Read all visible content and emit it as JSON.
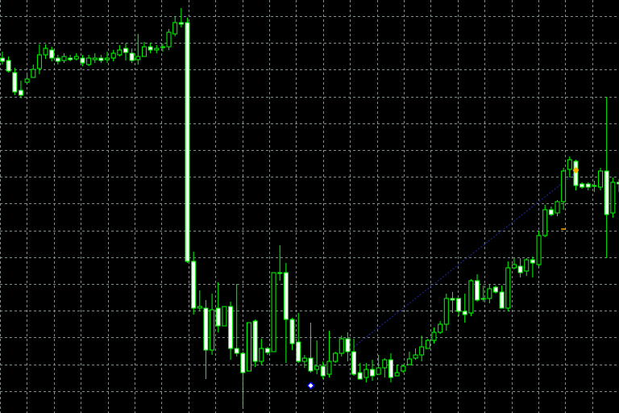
{
  "chart_data": {
    "type": "candlestick",
    "grid": true,
    "grid_style": "dashed",
    "colors": {
      "background": "#000000",
      "grid": "#7f8a8a",
      "candle_up_fill": "#000000",
      "candle_down_fill": "#ffffff",
      "candle_outline": "#00ff00",
      "wick": "#00ff00",
      "trendline": "#1e2aa8",
      "marker_up": "#ffb000",
      "marker_down": "#0000ff",
      "marker_hash": "#ffb000"
    },
    "candles": [
      [
        72,
        76,
        64,
        80
      ],
      [
        75,
        88,
        70,
        90
      ],
      [
        90,
        114,
        84,
        118
      ],
      [
        112,
        118,
        100,
        122
      ],
      [
        102,
        98,
        92,
        103
      ],
      [
        96,
        86,
        80,
        92
      ],
      [
        85,
        68,
        55,
        92
      ],
      [
        68,
        60,
        55,
        73
      ],
      [
        62,
        72,
        58,
        76
      ],
      [
        72,
        76,
        68,
        80
      ],
      [
        75,
        70,
        66,
        78
      ],
      [
        72,
        74,
        68,
        76
      ],
      [
        73,
        70,
        66,
        75
      ],
      [
        72,
        78,
        68,
        82
      ],
      [
        80,
        72,
        68,
        82
      ],
      [
        74,
        72,
        66,
        78
      ],
      [
        72,
        75,
        68,
        78
      ],
      [
        74,
        72,
        64,
        78
      ],
      [
        72,
        66,
        62,
        76
      ],
      [
        68,
        62,
        56,
        70
      ],
      [
        60,
        65,
        54,
        75
      ],
      [
        66,
        75,
        60,
        78
      ],
      [
        74,
        70,
        42,
        80
      ],
      [
        70,
        58,
        52,
        70
      ],
      [
        58,
        62,
        53,
        66
      ],
      [
        62,
        60,
        56,
        66
      ],
      [
        59,
        58,
        54,
        64
      ],
      [
        58,
        40,
        36,
        62
      ],
      [
        42,
        28,
        20,
        45
      ],
      [
        28,
        30,
        10,
        34
      ],
      [
        28,
        324,
        22,
        326
      ],
      [
        324,
        382,
        312,
        390
      ],
      [
        382,
        380,
        360,
        386
      ],
      [
        382,
        434,
        372,
        470
      ],
      [
        434,
        384,
        364,
        440
      ],
      [
        382,
        404,
        350,
        412
      ],
      [
        404,
        380,
        380,
        404
      ],
      [
        380,
        432,
        374,
        446
      ],
      [
        432,
        438,
        352,
        442
      ],
      [
        438,
        462,
        436,
        505
      ],
      [
        460,
        400,
        400,
        460
      ],
      [
        398,
        448,
        396,
        455
      ],
      [
        448,
        432,
        420,
        452
      ],
      [
        432,
        437,
        430,
        440
      ],
      [
        436,
        338,
        338,
        436
      ],
      [
        338,
        338,
        304,
        348
      ],
      [
        338,
        396,
        326,
        450
      ],
      [
        396,
        426,
        394,
        434
      ],
      [
        424,
        448,
        388,
        450
      ],
      [
        448,
        444,
        440,
        456
      ],
      [
        444,
        460,
        400,
        462
      ],
      [
        458,
        454,
        422,
        464
      ],
      [
        454,
        466,
        448,
        470
      ],
      [
        464,
        448,
        410,
        468
      ],
      [
        448,
        438,
        436,
        450
      ],
      [
        438,
        420,
        416,
        442
      ],
      [
        420,
        436,
        412,
        448
      ],
      [
        436,
        464,
        420,
        466
      ],
      [
        462,
        470,
        450,
        470
      ],
      [
        468,
        458,
        450,
        474
      ],
      [
        458,
        466,
        446,
        472
      ],
      [
        464,
        456,
        440,
        460
      ],
      [
        456,
        446,
        444,
        468
      ],
      [
        446,
        468,
        438,
        474
      ],
      [
        466,
        462,
        452,
        466
      ],
      [
        460,
        454,
        452,
        462
      ],
      [
        452,
        445,
        436,
        452
      ],
      [
        444,
        440,
        432,
        446
      ],
      [
        440,
        430,
        416,
        448
      ],
      [
        432,
        422,
        420,
        432
      ],
      [
        422,
        412,
        406,
        426
      ],
      [
        412,
        402,
        398,
        414
      ],
      [
        402,
        370,
        364,
        410
      ],
      [
        370,
        372,
        362,
        388
      ],
      [
        370,
        386,
        370,
        392
      ],
      [
        386,
        390,
        364,
        400
      ],
      [
        388,
        348,
        346,
        392
      ],
      [
        348,
        372,
        340,
        374
      ],
      [
        370,
        370,
        354,
        374
      ],
      [
        370,
        358,
        352,
        376
      ],
      [
        356,
        362,
        354,
        364
      ],
      [
        362,
        382,
        354,
        382
      ],
      [
        382,
        332,
        324,
        386
      ],
      [
        332,
        328,
        320,
        334
      ],
      [
        330,
        338,
        320,
        344
      ],
      [
        336,
        322,
        320,
        342
      ],
      [
        322,
        326,
        318,
        344
      ],
      [
        328,
        292,
        286,
        330
      ],
      [
        292,
        260,
        254,
        294
      ],
      [
        260,
        266,
        256,
        268
      ],
      [
        264,
        250,
        248,
        268
      ],
      [
        250,
        212,
        208,
        260
      ],
      [
        210,
        198,
        194,
        220
      ],
      [
        200,
        230,
        198,
        236
      ],
      [
        228,
        232,
        226,
        234
      ],
      [
        228,
        232,
        226,
        236
      ],
      [
        230,
        230,
        224,
        238
      ],
      [
        232,
        212,
        208,
        236
      ],
      [
        212,
        266,
        120,
        320
      ],
      [
        264,
        226,
        220,
        270
      ],
      [
        226,
        228,
        222,
        238
      ]
    ],
    "trendline": {
      "from": [
        57,
        430
      ],
      "to": [
        93,
        214
      ]
    },
    "markers": [
      {
        "type": "arrow-up",
        "at": [
          93,
          211
        ]
      },
      {
        "type": "arrow-down",
        "at": [
          50,
          478
        ]
      },
      {
        "type": "hash",
        "at": [
          91,
          284
        ]
      }
    ]
  }
}
